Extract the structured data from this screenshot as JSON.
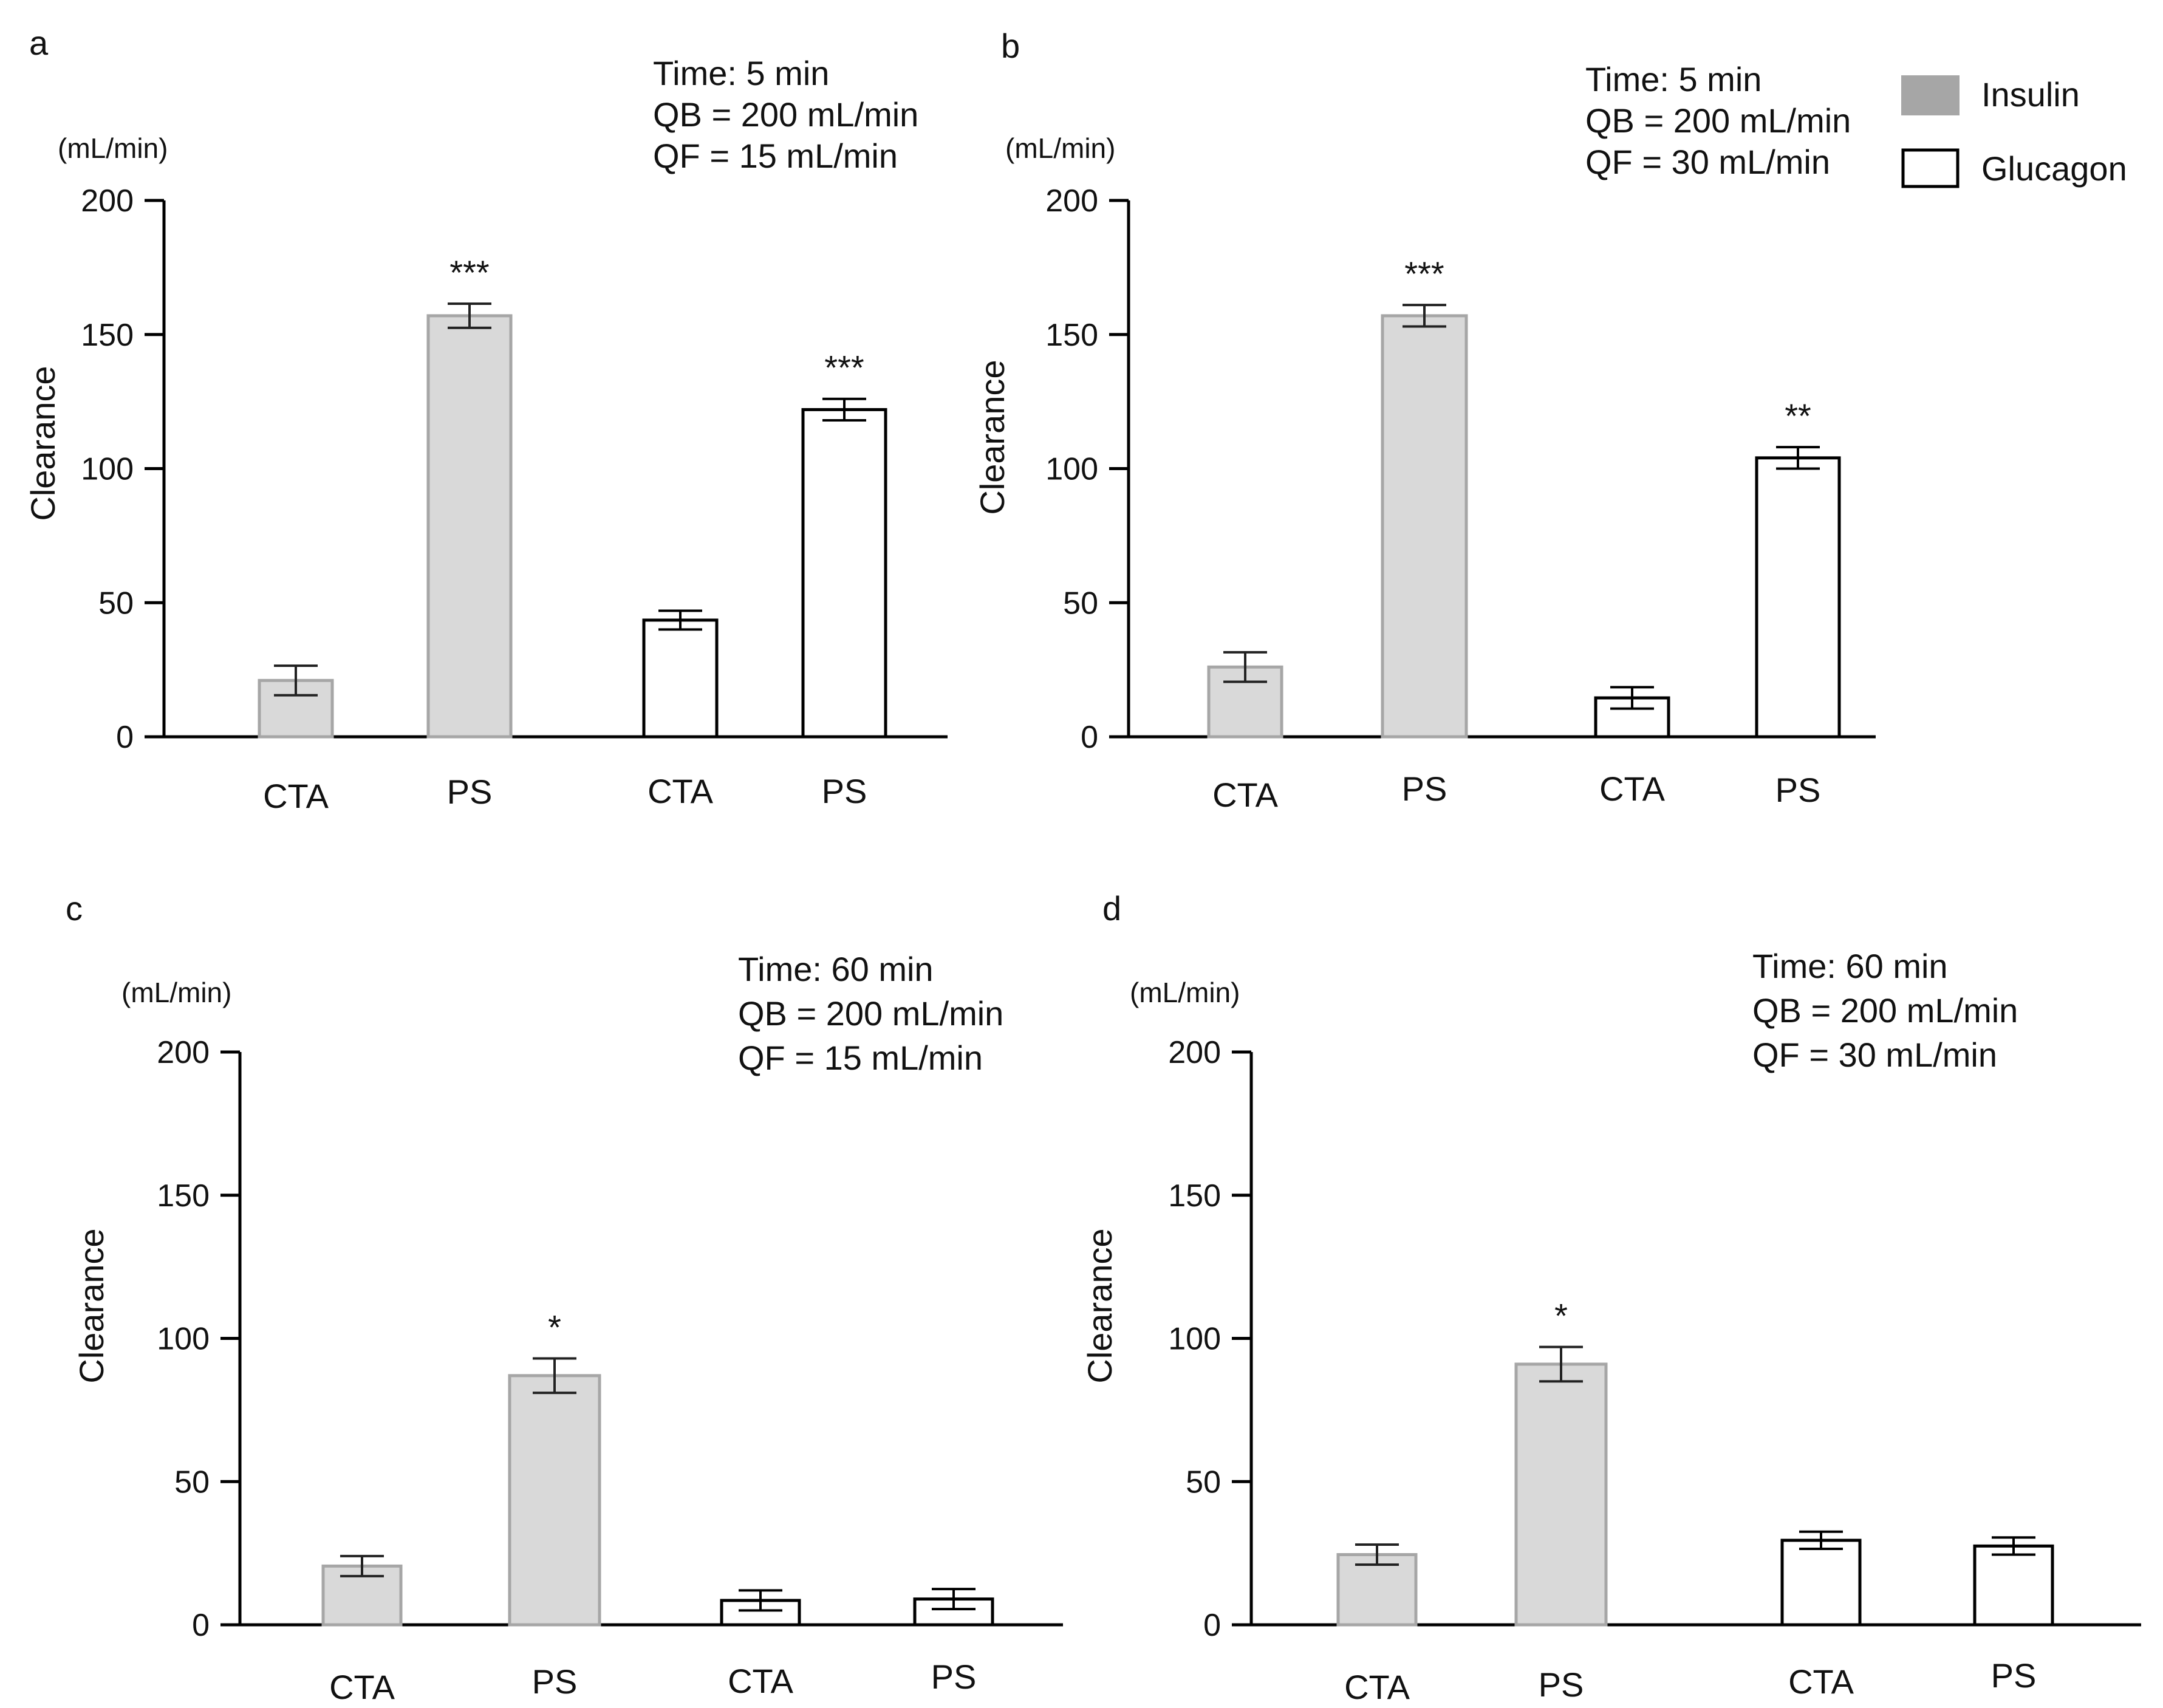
{
  "legend": {
    "items": [
      {
        "label": "Insulin",
        "color": "#d9d9d9"
      },
      {
        "label": "Glucagon",
        "color": "#ffffff"
      }
    ]
  },
  "colors": {
    "insulin_fill": "#d9d9d9",
    "insulin_stroke": "#a6a6a6",
    "glucagon_fill": "#ffffff",
    "glucagon_stroke": "#000000",
    "axis": "#000000",
    "legend_insulin_swatch": "#a6a6a6"
  },
  "chart_data": [
    {
      "panel": "a",
      "type": "bar",
      "ylabel": "Clearance",
      "yunit": "(mL/min)",
      "ylim": [
        0,
        200
      ],
      "yticks": [
        0,
        50,
        100,
        150,
        200
      ],
      "conditions": [
        "Time: 5 min",
        "QB = 200 mL/min",
        "QF = 15 mL/min"
      ],
      "bars": [
        {
          "category": "CTA",
          "series": "Insulin",
          "value": 21,
          "error": 5.5,
          "sig": ""
        },
        {
          "category": "PS",
          "series": "Insulin",
          "value": 157,
          "error": 4.5,
          "sig": "***"
        },
        {
          "category": "CTA",
          "series": "Glucagon",
          "value": 43.5,
          "error": 3.5,
          "sig": ""
        },
        {
          "category": "PS",
          "series": "Glucagon",
          "value": 122,
          "error": 4,
          "sig": "***"
        }
      ]
    },
    {
      "panel": "b",
      "type": "bar",
      "ylabel": "Clearance",
      "yunit": "(mL/min)",
      "ylim": [
        0,
        200
      ],
      "yticks": [
        0,
        50,
        100,
        150,
        200
      ],
      "conditions": [
        "Time: 5 min",
        "QB = 200 mL/min",
        "QF = 30 mL/min"
      ],
      "bars": [
        {
          "category": "CTA",
          "series": "Insulin",
          "value": 26,
          "error": 5.5,
          "sig": ""
        },
        {
          "category": "PS",
          "series": "Insulin",
          "value": 157,
          "error": 4,
          "sig": "***"
        },
        {
          "category": "CTA",
          "series": "Glucagon",
          "value": 14.5,
          "error": 4,
          "sig": ""
        },
        {
          "category": "PS",
          "series": "Glucagon",
          "value": 104,
          "error": 4,
          "sig": "**"
        }
      ]
    },
    {
      "panel": "c",
      "type": "bar",
      "ylabel": "Clearance",
      "yunit": "(mL/min)",
      "ylim": [
        0,
        200
      ],
      "yticks": [
        0,
        50,
        100,
        150,
        200
      ],
      "conditions": [
        "Time: 60 min",
        "QB = 200 mL/min",
        "QF = 15 mL/min"
      ],
      "bars": [
        {
          "category": "CTA",
          "series": "Insulin",
          "value": 20.5,
          "error": 3.5,
          "sig": ""
        },
        {
          "category": "PS",
          "series": "Insulin",
          "value": 87,
          "error": 6,
          "sig": "*"
        },
        {
          "category": "CTA",
          "series": "Glucagon",
          "value": 8.5,
          "error": 3.5,
          "sig": ""
        },
        {
          "category": "PS",
          "series": "Glucagon",
          "value": 9,
          "error": 3.5,
          "sig": ""
        }
      ]
    },
    {
      "panel": "d",
      "type": "bar",
      "ylabel": "Clearance",
      "yunit": "(mL/min)",
      "ylim": [
        0,
        200
      ],
      "yticks": [
        0,
        50,
        100,
        150,
        200
      ],
      "conditions": [
        "Time: 60 min",
        "QB = 200 mL/min",
        "QF = 30 mL/min"
      ],
      "bars": [
        {
          "category": "CTA",
          "series": "Insulin",
          "value": 24.5,
          "error": 3.5,
          "sig": ""
        },
        {
          "category": "PS",
          "series": "Insulin",
          "value": 91,
          "error": 6,
          "sig": "*"
        },
        {
          "category": "CTA",
          "series": "Glucagon",
          "value": 29.5,
          "error": 3,
          "sig": ""
        },
        {
          "category": "PS",
          "series": "Glucagon",
          "value": 27.5,
          "error": 3,
          "sig": ""
        }
      ]
    }
  ]
}
